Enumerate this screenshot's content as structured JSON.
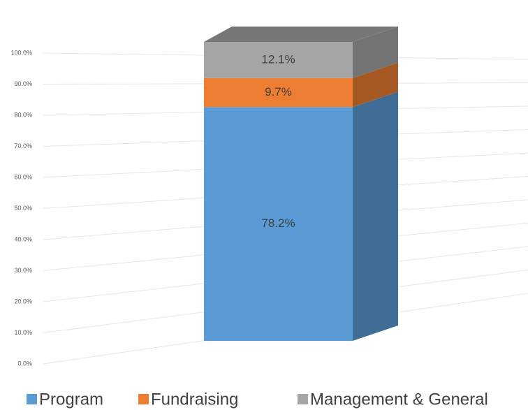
{
  "chart_data": {
    "type": "bar",
    "stacked": true,
    "categories": [
      null
    ],
    "series": [
      {
        "name": "Program",
        "color": "#5b9bd5",
        "values": [
          78.2
        ],
        "value_labels": [
          "78.2%"
        ]
      },
      {
        "name": "Fundraising",
        "color": "#ed7d31",
        "values": [
          9.7
        ],
        "value_labels": [
          "9.7%"
        ]
      },
      {
        "name": "Management & General",
        "color": "#a5a5a5",
        "values": [
          12.1
        ],
        "value_labels": [
          "12.1%"
        ]
      }
    ],
    "ylim": [
      0,
      100
    ],
    "yticks": [
      {
        "value": 0,
        "label": "0.0%"
      },
      {
        "value": 10,
        "label": "10.0%"
      },
      {
        "value": 20,
        "label": "20.0%"
      },
      {
        "value": 30,
        "label": "30.0%"
      },
      {
        "value": 40,
        "label": "40.0%"
      },
      {
        "value": 50,
        "label": "50.0%"
      },
      {
        "value": 60,
        "label": "60.0%"
      },
      {
        "value": 70,
        "label": "70.0%"
      },
      {
        "value": 80,
        "label": "80.0%"
      },
      {
        "value": 90,
        "label": "90.0%"
      },
      {
        "value": 100,
        "label": "100.0%"
      }
    ],
    "grid": true,
    "legend": "bottom"
  }
}
